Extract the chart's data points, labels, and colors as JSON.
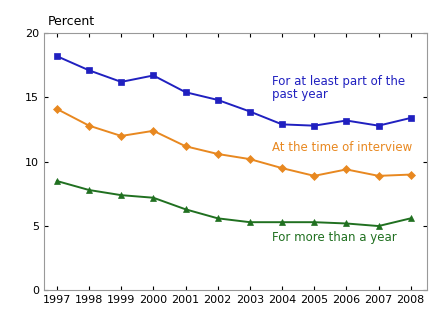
{
  "years": [
    1997,
    1998,
    1999,
    2000,
    2001,
    2002,
    2003,
    2004,
    2005,
    2006,
    2007,
    2008
  ],
  "blue_series": [
    18.2,
    17.1,
    16.2,
    16.7,
    15.4,
    14.8,
    13.9,
    12.9,
    12.8,
    13.2,
    12.8,
    13.4
  ],
  "orange_series": [
    14.1,
    12.8,
    12.0,
    12.4,
    11.2,
    10.6,
    10.2,
    9.5,
    8.9,
    9.4,
    8.9,
    9.0
  ],
  "green_series": [
    8.5,
    7.8,
    7.4,
    7.2,
    6.3,
    5.6,
    5.3,
    5.3,
    5.3,
    5.2,
    5.0,
    5.6
  ],
  "blue_color": "#2020c0",
  "orange_color": "#e88820",
  "green_color": "#207020",
  "ylim": [
    0,
    20
  ],
  "yticks": [
    0,
    5,
    10,
    15,
    20
  ],
  "xlim": [
    1996.6,
    2008.5
  ],
  "blue_label_line1": "For at least part of the",
  "blue_label_line2": "past year",
  "orange_label": "At the time of interview",
  "green_label": "For more than a year",
  "ylabel": "Percent",
  "annotation_fontsize": 8.5,
  "tick_fontsize": 8,
  "ylabel_fontsize": 9,
  "background_color": "#ffffff",
  "border_color": "#999999"
}
